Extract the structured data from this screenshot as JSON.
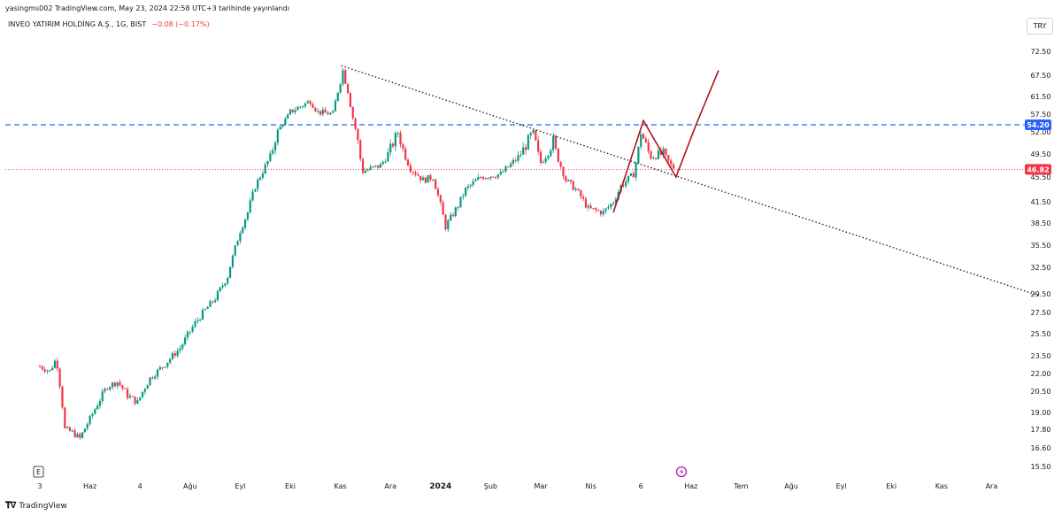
{
  "header": {
    "published": "yasingms002 TradingView.com, May 23, 2024 22:58 UTC+3 tarihinde yayınlandı",
    "symbol": "INVEO YATIRIM HOLDİNG A.Ş., 1G, BIST",
    "change": "−0.08 (−0.17%)",
    "currency": "TRY"
  },
  "footer": {
    "brand": "TradingView",
    "logo": "tv-logo-icon"
  },
  "badges": {
    "earnings": "E",
    "dividend_icon": "lightning-circle-icon"
  },
  "colors": {
    "up": "#089981",
    "down": "#f23645",
    "blue_line": "#2962ff",
    "price_line": "#f23645",
    "drawing": "#b2101a",
    "trendline": "#131722"
  },
  "chart_data": {
    "type": "candlestick",
    "y_ticks": [
      "72.50",
      "67.50",
      "61.50",
      "57.50",
      "52.00",
      "49.50",
      "45.50",
      "41.50",
      "38.50",
      "35.50",
      "32.50",
      "29.50",
      "27.50",
      "25.50",
      "23.50",
      "22.00",
      "20.50",
      "19.00",
      "17.80",
      "16.60",
      "15.50"
    ],
    "y_tick_values": [
      72.5,
      67.5,
      61.5,
      57.5,
      52.0,
      49.5,
      45.5,
      41.5,
      38.5,
      35.5,
      32.5,
      29.5,
      27.5,
      25.5,
      23.5,
      22.0,
      20.5,
      19.0,
      17.8,
      16.6,
      15.5
    ],
    "x_labels": [
      "3",
      "Haz",
      "4",
      "Ağu",
      "Eyl",
      "Eki",
      "Kas",
      "Ara",
      "2024",
      "Şub",
      "Mar",
      "Nis",
      "6",
      "Haz",
      "Tem",
      "Ağu",
      "Eyl",
      "Eki",
      "Kas",
      "Ara"
    ],
    "x_label_months": [
      0,
      1,
      2,
      3,
      4,
      5,
      6,
      7,
      8,
      9,
      10,
      11,
      12,
      13,
      14,
      15,
      16,
      17,
      18,
      19
    ],
    "bold_labels": [
      "2024"
    ],
    "last_price": 46.82,
    "last_price_label": "46.82",
    "horizontal_level": 54.2,
    "horizontal_level_label": "54.20",
    "anchors": [
      [
        0.0,
        22.6
      ],
      [
        0.2,
        22.2
      ],
      [
        0.33,
        23.3
      ],
      [
        0.45,
        19.5
      ],
      [
        0.5,
        17.8
      ],
      [
        0.65,
        17.6
      ],
      [
        0.8,
        17.2
      ],
      [
        0.95,
        18.2
      ],
      [
        1.15,
        19.6
      ],
      [
        1.35,
        20.9
      ],
      [
        1.55,
        21.3
      ],
      [
        1.75,
        20.2
      ],
      [
        1.95,
        19.7
      ],
      [
        2.2,
        21.6
      ],
      [
        2.5,
        22.8
      ],
      [
        2.8,
        24.2
      ],
      [
        3.1,
        26.5
      ],
      [
        3.5,
        29.0
      ],
      [
        3.75,
        31.5
      ],
      [
        4.0,
        37.5
      ],
      [
        4.15,
        40.0
      ],
      [
        4.3,
        44.0
      ],
      [
        4.6,
        49.0
      ],
      [
        5.0,
        58.0
      ],
      [
        5.4,
        60.5
      ],
      [
        5.55,
        58.0
      ],
      [
        5.85,
        57.5
      ],
      [
        6.05,
        68.5
      ],
      [
        6.15,
        63.0
      ],
      [
        6.3,
        53.0
      ],
      [
        6.45,
        46.5
      ],
      [
        6.8,
        47.5
      ],
      [
        7.15,
        52.0
      ],
      [
        7.4,
        47.0
      ],
      [
        7.65,
        45.0
      ],
      [
        7.85,
        45.5
      ],
      [
        8.0,
        41.0
      ],
      [
        8.1,
        38.0
      ],
      [
        8.35,
        41.0
      ],
      [
        8.5,
        43.5
      ],
      [
        8.8,
        45.5
      ],
      [
        9.2,
        46.0
      ],
      [
        9.5,
        48.5
      ],
      [
        9.85,
        52.0
      ],
      [
        10.0,
        48.0
      ],
      [
        10.25,
        51.0
      ],
      [
        10.5,
        45.0
      ],
      [
        10.7,
        43.5
      ],
      [
        10.95,
        40.5
      ],
      [
        11.25,
        40.0
      ],
      [
        11.45,
        41.5
      ],
      [
        11.6,
        44.0
      ],
      [
        11.85,
        46.0
      ],
      [
        12.0,
        52.0
      ],
      [
        12.2,
        49.0
      ],
      [
        12.45,
        49.5
      ],
      [
        12.6,
        47.5
      ],
      [
        12.68,
        46.9
      ]
    ],
    "trendline": {
      "start": [
        6.02,
        69.5
      ],
      "end": [
        19.95,
        29.3
      ],
      "style": "dotted"
    },
    "pattern_path": [
      [
        11.45,
        40.0
      ],
      [
        12.05,
        55.5
      ],
      [
        12.7,
        45.5
      ],
      [
        13.1,
        54.2
      ],
      [
        13.55,
        68.5
      ]
    ]
  }
}
